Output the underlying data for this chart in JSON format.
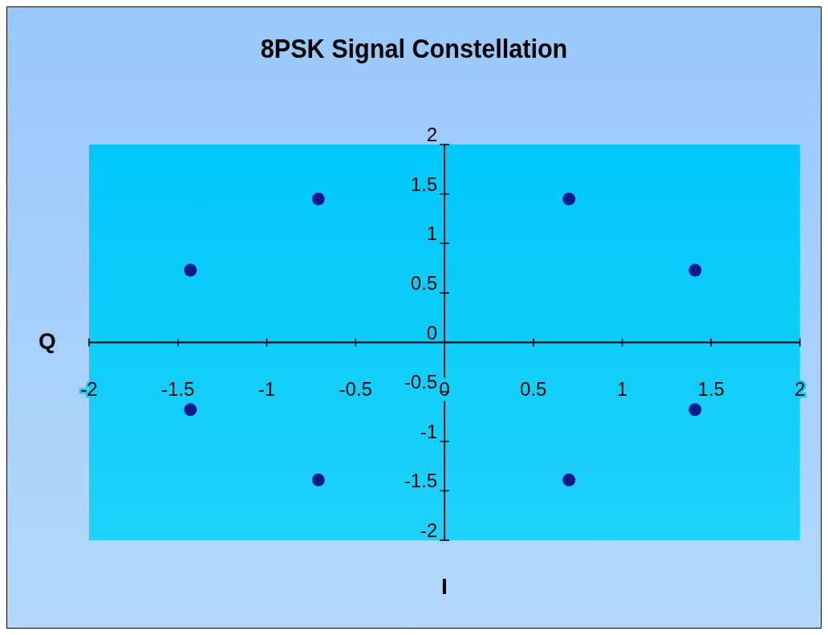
{
  "chart_data": {
    "type": "scatter",
    "title": "8PSK Signal Constellation",
    "xlabel": "I",
    "ylabel": "Q",
    "x": [
      -0.71,
      0.7,
      -1.43,
      1.41,
      -1.43,
      1.41,
      -0.71,
      0.7
    ],
    "values": [
      1.45,
      1.45,
      0.73,
      0.73,
      -0.68,
      -0.68,
      -1.39,
      -1.39
    ],
    "color": "#0b1a8e",
    "marker": "circle",
    "xlim": [
      -2,
      2
    ],
    "xticks": [
      -2,
      -1.5,
      -1,
      -0.5,
      0,
      0.5,
      1,
      1.5,
      2
    ],
    "ylim": [
      -2,
      2
    ],
    "yticks": [
      -2,
      -1.5,
      -1,
      -0.5,
      0,
      0.5,
      1,
      1.5,
      2
    ],
    "grid": false
  }
}
